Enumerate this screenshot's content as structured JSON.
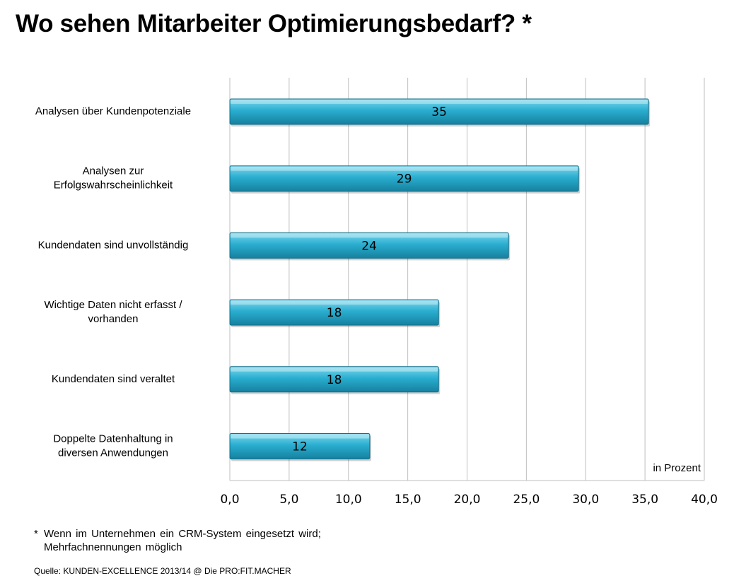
{
  "title": "Wo sehen Mitarbeiter Optimierungsbedarf? *",
  "colors": {
    "bar_light": "#7fd8ee",
    "bar_mid": "#2aaed0",
    "bar_dark": "#16809e",
    "bar_edge": "#0f6f8a",
    "grid": "#bfbfbf"
  },
  "chart_data": {
    "type": "bar",
    "orientation": "horizontal",
    "categories": [
      [
        "Analysen über Kundenpotenziale"
      ],
      [
        "Analysen zur",
        "Erfolgswahrscheinlichkeit"
      ],
      [
        "Kundendaten  sind unvollständig"
      ],
      [
        "Wichtige Daten nicht erfasst /",
        "vorhanden"
      ],
      [
        "Kundendaten  sind veraltet"
      ],
      [
        "Doppelte  Datenhaltung  in",
        "diversen  Anwendungen"
      ]
    ],
    "values": [
      35.3,
      29.4,
      23.5,
      17.6,
      17.6,
      11.8
    ],
    "value_labels": [
      "35",
      "29",
      "24",
      "18",
      "18",
      "12"
    ],
    "xlim": [
      0,
      40
    ],
    "xticks": [
      0,
      5,
      10,
      15,
      20,
      25,
      30,
      35,
      40
    ],
    "xtick_labels": [
      "0,0",
      "5,0",
      "10,0",
      "15,0",
      "20,0",
      "25,0",
      "30,0",
      "35,0",
      "40,0"
    ],
    "unit_label": "in Prozent",
    "grid": true
  },
  "footnote": {
    "marker": "*",
    "text": "Wenn im Unternehmen  ein CRM-System  eingesetzt  wird;\nMehrfachnennungen  möglich"
  },
  "source": "Quelle: KUNDEN-EXCELLENCE 2013/14 @ Die PRO:FIT.MACHER"
}
